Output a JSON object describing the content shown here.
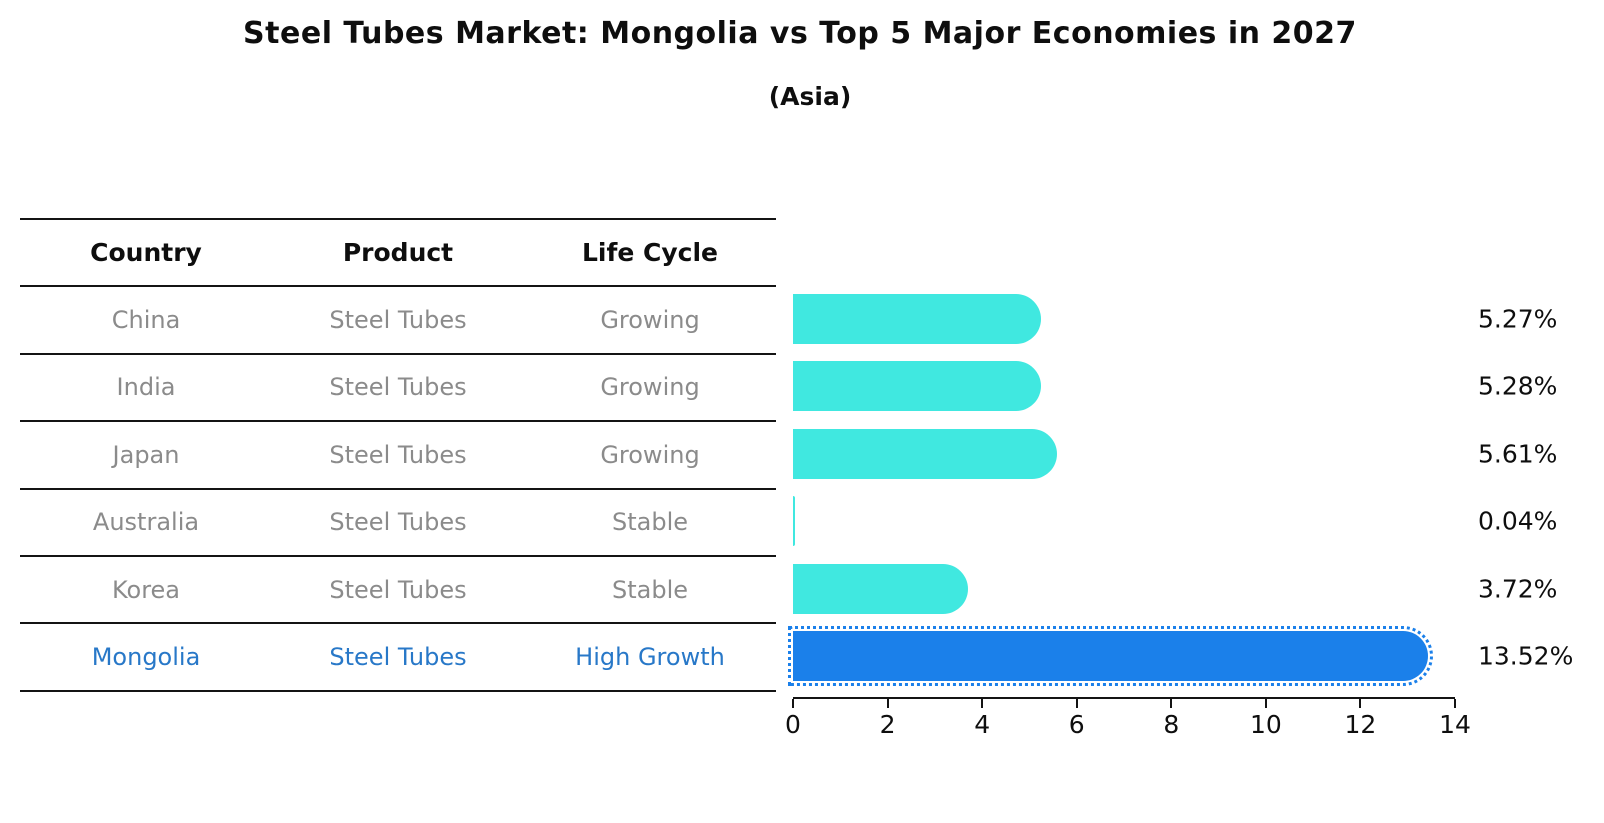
{
  "title": "Steel Tubes Market: Mongolia vs Top 5 Major Economies in 2027",
  "subtitle": "(Asia)",
  "table": {
    "headers": [
      "Country",
      "Product",
      "Life Cycle"
    ],
    "rows": [
      {
        "country": "China",
        "product": "Steel Tubes",
        "life_cycle": "Growing",
        "highlight": false
      },
      {
        "country": "India",
        "product": "Steel Tubes",
        "life_cycle": "Growing",
        "highlight": false
      },
      {
        "country": "Japan",
        "product": "Steel Tubes",
        "life_cycle": "Growing",
        "highlight": false
      },
      {
        "country": "Australia",
        "product": "Steel Tubes",
        "life_cycle": "Stable",
        "highlight": false
      },
      {
        "country": "Korea",
        "product": "Steel Tubes",
        "life_cycle": "Stable",
        "highlight": false
      },
      {
        "country": "Mongolia",
        "product": "Steel Tubes",
        "life_cycle": "High Growth",
        "highlight": true
      }
    ]
  },
  "chart_data": {
    "type": "bar",
    "orientation": "horizontal",
    "title": "Steel Tubes Market: Mongolia vs Top 5 Major Economies in 2027",
    "subtitle": "(Asia)",
    "categories": [
      "China",
      "India",
      "Japan",
      "Australia",
      "Korea",
      "Mongolia"
    ],
    "values": [
      5.27,
      5.28,
      5.61,
      0.04,
      3.72,
      13.52
    ],
    "value_labels": [
      "5.27%",
      "5.28%",
      "5.61%",
      "0.04%",
      "3.72%",
      "13.52%"
    ],
    "xlim": [
      0,
      14
    ],
    "x_ticks": [
      "0",
      "2",
      "4",
      "6",
      "8",
      "10",
      "12",
      "14"
    ],
    "grid": false,
    "legend": "none",
    "bar_color": "#40e8e0",
    "highlight_bar_color": "#1b80ea",
    "highlight_index": 5
  },
  "colors": {
    "background": "#ffffff",
    "text_primary": "#0e0e0e",
    "text_muted": "#8b8b8b",
    "highlight_text": "#2878c8",
    "axis": "#141414"
  }
}
